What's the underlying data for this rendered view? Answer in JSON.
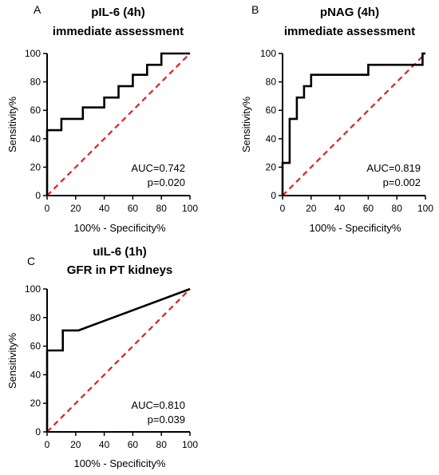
{
  "chart_data": [
    {
      "type": "line",
      "panel_label": "A",
      "title_lines": [
        "pIL-6 (4h)",
        "immediate assessment"
      ],
      "xlabel": "100% - Specificity%",
      "ylabel": "Sensitivity%",
      "xlim": [
        0,
        100
      ],
      "ylim": [
        0,
        100
      ],
      "x_ticks": [
        0,
        20,
        40,
        60,
        80,
        100
      ],
      "y_ticks": [
        0,
        20,
        40,
        60,
        80,
        100
      ],
      "annotations": [
        "AUC=0.742",
        "p=0.020"
      ],
      "series": [
        {
          "style": "roc-curve",
          "color": "#000000",
          "x": [
            0,
            0,
            10,
            10,
            25,
            25,
            40,
            40,
            50,
            50,
            60,
            60,
            70,
            70,
            80,
            80,
            100
          ],
          "y": [
            0,
            46,
            46,
            54,
            54,
            62,
            62,
            69,
            69,
            77,
            77,
            85,
            85,
            92,
            92,
            100,
            100
          ]
        },
        {
          "style": "reference-diagonal",
          "color": "#e02020",
          "x": [
            0,
            100
          ],
          "y": [
            0,
            100
          ]
        }
      ]
    },
    {
      "type": "line",
      "panel_label": "B",
      "title_lines": [
        "pNAG (4h)",
        "immediate assessment"
      ],
      "xlabel": "100% - Specificity%",
      "ylabel": "Sensitivity%",
      "xlim": [
        0,
        100
      ],
      "ylim": [
        0,
        100
      ],
      "x_ticks": [
        0,
        20,
        40,
        60,
        80,
        100
      ],
      "y_ticks": [
        0,
        20,
        40,
        60,
        80,
        100
      ],
      "annotations": [
        "AUC=0.819",
        "p=0.002"
      ],
      "series": [
        {
          "style": "roc-curve",
          "color": "#000000",
          "x": [
            0,
            0,
            5,
            5,
            10,
            10,
            15,
            15,
            20,
            20,
            60,
            60,
            98,
            98,
            100
          ],
          "y": [
            0,
            23,
            23,
            54,
            54,
            69,
            69,
            77,
            77,
            85,
            85,
            92,
            92,
            100,
            100
          ]
        },
        {
          "style": "reference-diagonal",
          "color": "#e02020",
          "x": [
            0,
            100
          ],
          "y": [
            0,
            100
          ]
        }
      ]
    },
    {
      "type": "line",
      "panel_label": "C",
      "title_lines": [
        "uIL-6 (1h)",
        "GFR in PT kidneys"
      ],
      "xlabel": "100% - Specificity%",
      "ylabel": "Sensitivity%",
      "xlim": [
        0,
        100
      ],
      "ylim": [
        0,
        100
      ],
      "x_ticks": [
        0,
        20,
        40,
        60,
        80,
        100
      ],
      "y_ticks": [
        0,
        20,
        40,
        60,
        80,
        100
      ],
      "annotations": [
        "AUC=0.810",
        "p=0.039"
      ],
      "series": [
        {
          "style": "roc-curve",
          "color": "#000000",
          "x": [
            0,
            0,
            11,
            11,
            22,
            100
          ],
          "y": [
            0,
            57,
            57,
            71,
            71,
            100
          ]
        },
        {
          "style": "reference-diagonal",
          "color": "#e02020",
          "x": [
            0,
            100
          ],
          "y": [
            0,
            100
          ]
        }
      ]
    }
  ]
}
